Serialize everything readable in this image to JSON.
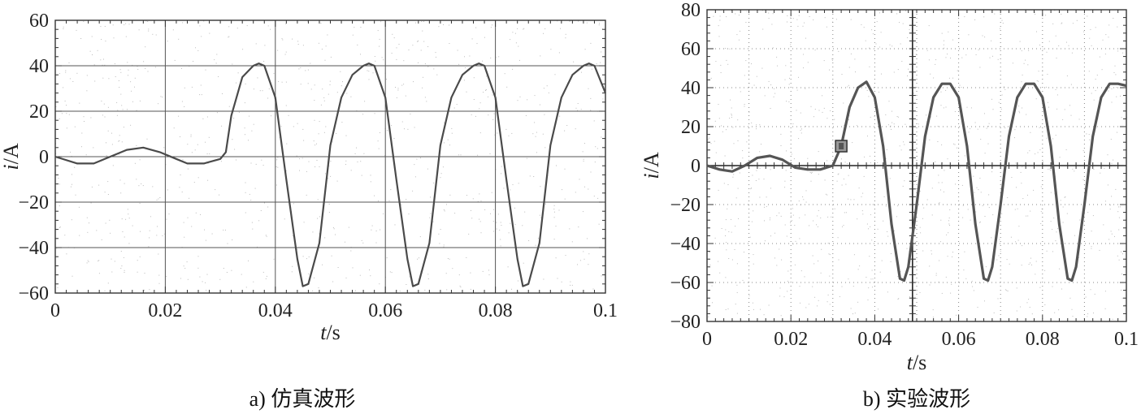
{
  "chart_data": [
    {
      "type": "line",
      "caption": "a) 仿真波形",
      "xlabel_italic": "t",
      "xlabel_unit": "/s",
      "ylabel_italic": "i",
      "ylabel_unit": "/A",
      "xlim": [
        0,
        0.1
      ],
      "ylim": [
        -60,
        60
      ],
      "xticks": [
        "0",
        "0.02",
        "0.04",
        "0.06",
        "0.08",
        "0.1"
      ],
      "yticks": [
        "60",
        "40",
        "20",
        "0",
        "−20",
        "−40",
        "−60"
      ],
      "grid": "solid",
      "series": [
        {
          "x": [
            0,
            0.004,
            0.007,
            0.01,
            0.013,
            0.016,
            0.019,
            0.022,
            0.024,
            0.027,
            0.03,
            0.031,
            0.032,
            0.034,
            0.036,
            0.037,
            0.038,
            0.04,
            0.042,
            0.044,
            0.045,
            0.046,
            0.048,
            0.05,
            0.052,
            0.054,
            0.056,
            0.057,
            0.058,
            0.06,
            0.062,
            0.064,
            0.065,
            0.066,
            0.068,
            0.07,
            0.072,
            0.074,
            0.076,
            0.077,
            0.078,
            0.08,
            0.082,
            0.084,
            0.085,
            0.086,
            0.088,
            0.09,
            0.092,
            0.094,
            0.096,
            0.097,
            0.098,
            0.1
          ],
          "y": [
            0,
            -3,
            -3,
            0,
            3,
            4,
            2,
            -1,
            -3,
            -3,
            -1,
            2,
            18,
            35,
            40,
            41,
            40,
            26,
            -10,
            -45,
            -57,
            -56,
            -38,
            5,
            26,
            36,
            40,
            41,
            40,
            26,
            -10,
            -45,
            -57,
            -56,
            -38,
            5,
            26,
            36,
            40,
            41,
            40,
            26,
            -10,
            -45,
            -57,
            -56,
            -38,
            5,
            26,
            36,
            40,
            41,
            40,
            28
          ]
        }
      ]
    },
    {
      "type": "line",
      "caption": "b) 实验波形",
      "xlabel_italic": "t",
      "xlabel_unit": "/s",
      "ylabel_italic": "i",
      "ylabel_unit": "/A",
      "xlim": [
        0,
        0.1
      ],
      "ylim": [
        -80,
        80
      ],
      "xticks": [
        "0",
        "0.02",
        "0.04",
        "0.06",
        "0.08",
        "0.1"
      ],
      "yticks": [
        "80",
        "60",
        "40",
        "20",
        "0",
        "−20",
        "−40",
        "−60",
        "−80"
      ],
      "grid": "dotted",
      "trigger_marker": {
        "x": 0.032,
        "y": 10
      },
      "series": [
        {
          "x": [
            0,
            0.003,
            0.006,
            0.009,
            0.012,
            0.015,
            0.018,
            0.021,
            0.024,
            0.027,
            0.03,
            0.032,
            0.034,
            0.036,
            0.038,
            0.04,
            0.042,
            0.044,
            0.046,
            0.047,
            0.048,
            0.05,
            0.052,
            0.054,
            0.056,
            0.058,
            0.06,
            0.062,
            0.064,
            0.066,
            0.067,
            0.068,
            0.07,
            0.072,
            0.074,
            0.076,
            0.078,
            0.08,
            0.082,
            0.084,
            0.086,
            0.087,
            0.088,
            0.09,
            0.092,
            0.094,
            0.096,
            0.098,
            0.1
          ],
          "y": [
            0,
            -2,
            -3,
            0,
            4,
            5,
            3,
            -1,
            -2,
            -2,
            0,
            10,
            30,
            40,
            43,
            35,
            10,
            -30,
            -58,
            -59,
            -52,
            -20,
            15,
            35,
            42,
            42,
            35,
            10,
            -30,
            -58,
            -59,
            -52,
            -20,
            15,
            35,
            42,
            42,
            35,
            10,
            -30,
            -58,
            -59,
            -52,
            -20,
            15,
            35,
            42,
            42,
            41
          ]
        }
      ]
    }
  ]
}
